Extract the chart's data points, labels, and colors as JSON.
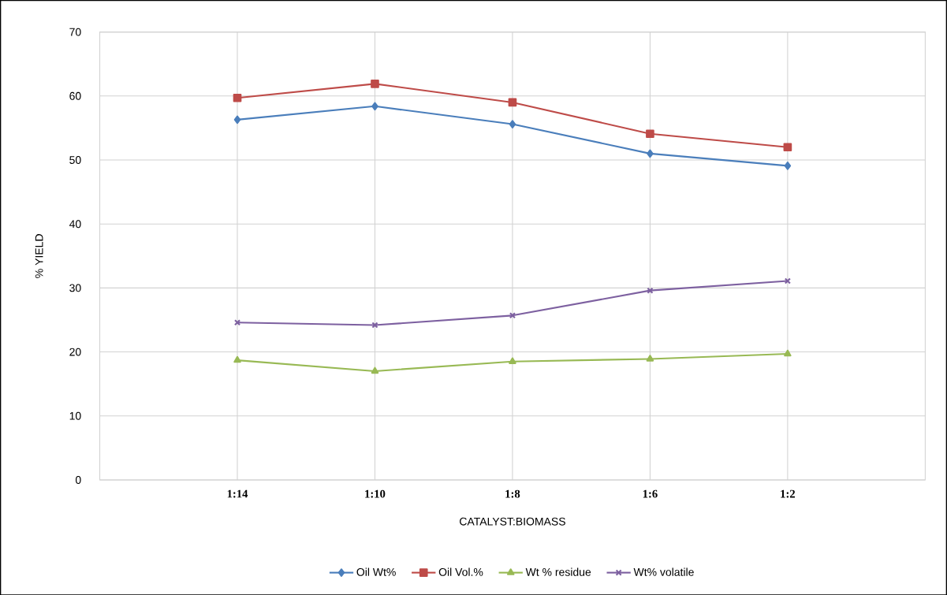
{
  "chart_data": {
    "type": "line",
    "xlabel": "CATALYST:BIOMASS",
    "ylabel": "% YIELD",
    "categories": [
      "1:14",
      "1:10",
      "1:8",
      "1:6",
      "1:2"
    ],
    "series": [
      {
        "name": "Oil Wt%",
        "color": "#4a7ebb",
        "marker": "diamond",
        "values": [
          56.3,
          58.4,
          55.6,
          51.0,
          49.1
        ]
      },
      {
        "name": "Oil Vol.%",
        "color": "#be4b48",
        "marker": "square",
        "values": [
          59.7,
          61.9,
          59.0,
          54.1,
          52.0
        ]
      },
      {
        "name": "Wt % residue",
        "color": "#98b954",
        "marker": "triangle",
        "values": [
          18.7,
          17.0,
          18.5,
          18.9,
          19.7
        ]
      },
      {
        "name": "Wt% volatile",
        "color": "#7d60a0",
        "marker": "cross",
        "values": [
          24.6,
          24.2,
          25.7,
          29.6,
          31.1
        ]
      }
    ],
    "ylim": [
      0,
      70
    ],
    "yticks": [
      0,
      10,
      20,
      30,
      40,
      50,
      60,
      70
    ],
    "grid": true,
    "legend": "bottom",
    "line_style": "solid"
  }
}
